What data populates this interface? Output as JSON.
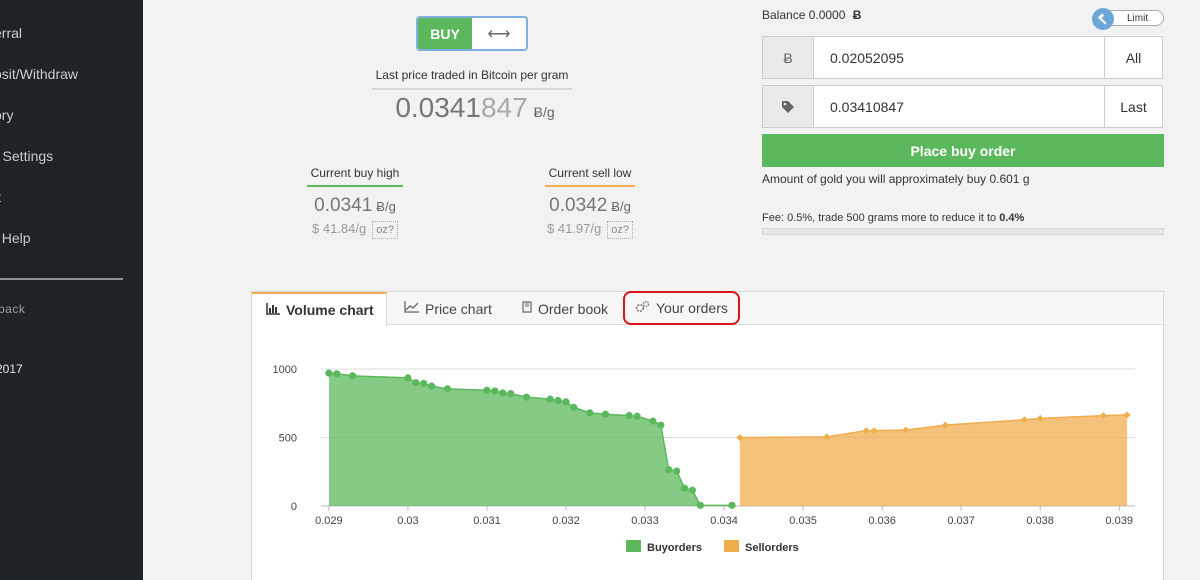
{
  "sidebar": {
    "items": [
      {
        "label": "erral"
      },
      {
        "label": "osit/Withdraw"
      },
      {
        "label": "ory"
      },
      {
        "label": "r Settings"
      },
      {
        "label": "it"
      },
      {
        "label": " / Help"
      }
    ],
    "small_text": "back",
    "year_text": "2017"
  },
  "trade": {
    "mode_label": "BUY",
    "swap_icon": "⟷",
    "last_price_title": "Last price traded in Bitcoin per gram",
    "last_price_main": "0.0341",
    "last_price_dim": "847",
    "unit": "Ƀ/g",
    "buy_high": {
      "label": "Current buy high",
      "value": "0.0341",
      "unit": "Ƀ/g",
      "usd": "$ 41.84/g",
      "oz": "oz?",
      "color": "#5cb85c"
    },
    "sell_low": {
      "label": "Current sell low",
      "value": "0.0342",
      "unit": "Ƀ/g",
      "usd": "$ 41.97/g",
      "oz": "oz?",
      "color": "#f0ad4e"
    }
  },
  "order": {
    "balance_label": "Balance 0.0000",
    "balance_icon": "Ƀ",
    "limit_label": "Limit",
    "limit_icon": "gavel-icon",
    "amount_icon": "Ƀ",
    "amount_value": "0.02052095",
    "amount_button": "All",
    "price_icon": "tag-icon",
    "price_value": "0.03410847",
    "price_button": "Last",
    "place_label": "Place buy order",
    "approx_text": "Amount of gold you will approximately buy 0.601 g",
    "fee_text": "Fee: 0.5%, trade 500 grams more to reduce it to ",
    "fee_bold": "0.4%"
  },
  "tabs": [
    {
      "label": "Volume chart",
      "icon": "bar-chart-icon"
    },
    {
      "label": "Price chart",
      "icon": "line-chart-icon"
    },
    {
      "label": "Order book",
      "icon": "book-icon"
    },
    {
      "label": "Your orders",
      "icon": "gears-icon"
    }
  ],
  "chart_data": {
    "type": "area",
    "xlim": [
      0.0289,
      0.0392
    ],
    "ylim": [
      0,
      1000
    ],
    "xticks": [
      "0.029",
      "0.03",
      "0.031",
      "0.032",
      "0.033",
      "0.034",
      "0.035",
      "0.036",
      "0.037",
      "0.038",
      "0.039"
    ],
    "yticks": [
      "0",
      "500",
      "1000"
    ],
    "legend_position": "bottom",
    "colors": {
      "buy": "#5cb85c",
      "sell": "#f0ad4e"
    },
    "series": [
      {
        "name": "Buyorders",
        "x": [
          0.029,
          0.0291,
          0.0293,
          0.03,
          0.0301,
          0.0302,
          0.0303,
          0.0305,
          0.031,
          0.0311,
          0.0312,
          0.0313,
          0.0315,
          0.0318,
          0.0319,
          0.032,
          0.0321,
          0.0323,
          0.0325,
          0.0328,
          0.0329,
          0.0331,
          0.0332,
          0.0333,
          0.0334,
          0.0335,
          0.0336,
          0.0337,
          0.0341
        ],
        "y": [
          970,
          965,
          950,
          935,
          900,
          895,
          875,
          855,
          845,
          840,
          825,
          820,
          795,
          780,
          770,
          760,
          720,
          680,
          670,
          660,
          655,
          620,
          590,
          265,
          255,
          130,
          115,
          5,
          5
        ]
      },
      {
        "name": "Sellorders",
        "x": [
          0.0342,
          0.0353,
          0.0358,
          0.0359,
          0.0363,
          0.0368,
          0.0378,
          0.038,
          0.0388,
          0.0391
        ],
        "y": [
          500,
          505,
          550,
          550,
          555,
          590,
          630,
          640,
          660,
          665
        ]
      }
    ]
  }
}
